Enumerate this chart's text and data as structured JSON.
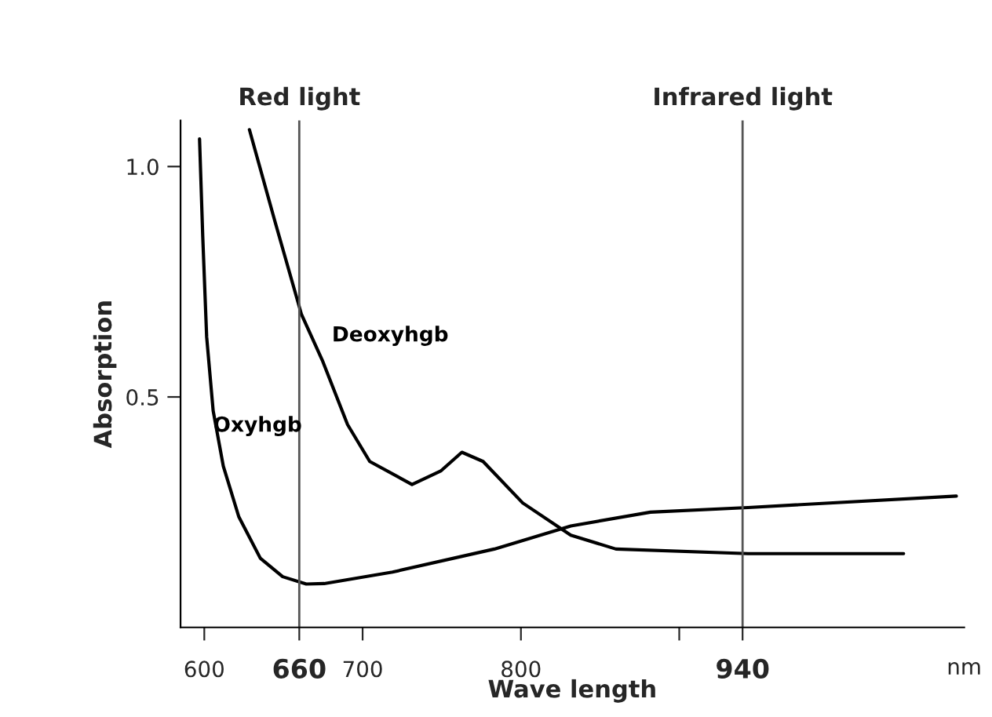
{
  "chart_data": {
    "type": "line",
    "xlabel": "Wave length",
    "ylabel": "Absorption",
    "series": [
      {
        "name": "Oxyhgb",
        "color": "#000000",
        "x": [
          597,
          599,
          601.5,
          605.6,
          612,
          621.8,
          635.4,
          649.5,
          664.4,
          675.7,
          718.9,
          783.2,
          831.5,
          881.8,
          943.5,
          1075
        ],
        "values": [
          1.06,
          0.85,
          0.63,
          0.47,
          0.35,
          0.24,
          0.15,
          0.11,
          0.094,
          0.095,
          0.12,
          0.17,
          0.22,
          0.25,
          0.26,
          0.285
        ]
      },
      {
        "name": "Deoxyhgb",
        "color": "#000000",
        "x": [
          628.5,
          644.7,
          661.3,
          674.5,
          690.5,
          704.5,
          731.2,
          749.6,
          762.7,
          776.1,
          801.1,
          831.5,
          860,
          943.5,
          1041.7
        ],
        "values": [
          1.08,
          0.88,
          0.68,
          0.58,
          0.44,
          0.36,
          0.31,
          0.34,
          0.38,
          0.36,
          0.27,
          0.2,
          0.17,
          0.16,
          0.16
        ]
      }
    ],
    "xlim": [
      585,
      1080
    ],
    "xticks": [
      600,
      660,
      700,
      800,
      {
        "value": 900,
        "label": null
      },
      940
    ],
    "ylim": [
      0,
      1.1
    ],
    "yticks": [
      {
        "value": 0.5,
        "label": "0.5"
      },
      {
        "value": 1.0,
        "label": "1.0"
      }
    ],
    "ref_lines": [
      {
        "axis": "x",
        "value": 660,
        "label": "Red light",
        "color": "#555555"
      },
      {
        "axis": "x",
        "value": 940,
        "label": "Infrared light",
        "color": "#555555"
      }
    ],
    "annotations": [
      "nm"
    ],
    "grid": false,
    "legend": false,
    "marker": "none",
    "line_style": "solid"
  }
}
